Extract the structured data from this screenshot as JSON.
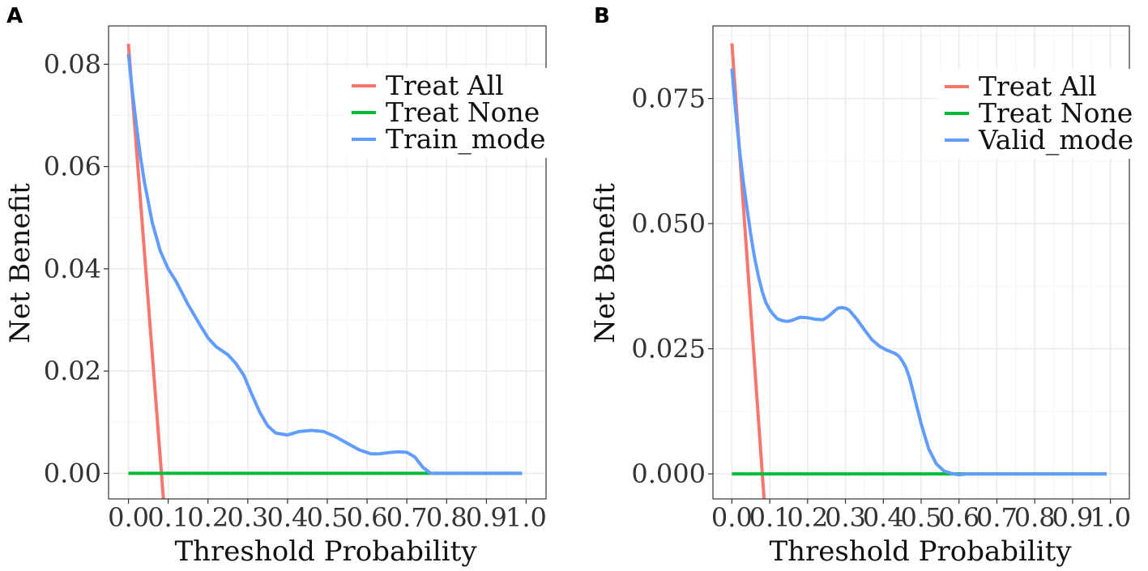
{
  "colors": {
    "treat_all": "#F8766D",
    "treat_none": "#00BA38",
    "model": "#619CFF",
    "grid_major": "#EBEBEB",
    "grid_minor": "#F5F5F5",
    "panel_border": "#333333"
  },
  "chart_data": [
    {
      "type": "line",
      "panel": "A",
      "title": "",
      "xlabel": "Threshold Probability",
      "ylabel": "Net Benefit",
      "xlim": [
        -0.05,
        1.05
      ],
      "ylim": [
        -0.005,
        0.0875
      ],
      "x_ticks": [
        0.0,
        0.1,
        0.2,
        0.3,
        0.4,
        0.5,
        0.6,
        0.7,
        0.8,
        0.9,
        1.0
      ],
      "x_tick_labels": [
        "0.0",
        "0.1",
        "0.2",
        "0.3",
        "0.4",
        "0.5",
        "0.6",
        "0.7",
        "0.8",
        "0.9",
        "1.0"
      ],
      "y_ticks": [
        0.0,
        0.02,
        0.04,
        0.06,
        0.08
      ],
      "y_tick_labels": [
        "0.00",
        "0.02",
        "0.04",
        "0.06",
        "0.08"
      ],
      "legend_position": "top-right",
      "series": [
        {
          "name": "Treat All",
          "color_key": "treat_all",
          "x": [
            0.0,
            0.088
          ],
          "y": [
            0.084,
            -0.005
          ]
        },
        {
          "name": "Treat None",
          "color_key": "treat_none",
          "x": [
            0.0,
            0.99
          ],
          "y": [
            0.0,
            0.0
          ]
        },
        {
          "name": "Train_mode",
          "color_key": "model",
          "x": [
            0.0,
            0.01,
            0.02,
            0.03,
            0.04,
            0.05,
            0.06,
            0.08,
            0.1,
            0.12,
            0.15,
            0.18,
            0.2,
            0.22,
            0.25,
            0.27,
            0.29,
            0.31,
            0.33,
            0.35,
            0.37,
            0.4,
            0.43,
            0.46,
            0.49,
            0.52,
            0.55,
            0.58,
            0.61,
            0.63,
            0.66,
            0.68,
            0.7,
            0.72,
            0.74,
            0.76,
            0.8,
            0.85,
            0.9,
            0.95,
            0.99
          ],
          "y": [
            0.082,
            0.0745,
            0.068,
            0.062,
            0.057,
            0.053,
            0.049,
            0.0435,
            0.04,
            0.0375,
            0.033,
            0.029,
            0.0265,
            0.0248,
            0.0232,
            0.0215,
            0.0192,
            0.0155,
            0.012,
            0.0093,
            0.0079,
            0.0075,
            0.0082,
            0.0084,
            0.0082,
            0.0072,
            0.0059,
            0.0046,
            0.0038,
            0.0038,
            0.0041,
            0.0042,
            0.0041,
            0.0032,
            0.0012,
            0.0,
            0.0,
            0.0,
            0.0,
            0.0,
            0.0
          ]
        }
      ]
    },
    {
      "type": "line",
      "panel": "B",
      "title": "",
      "xlabel": "Threshold Probability",
      "ylabel": "Net Benefit",
      "xlim": [
        -0.05,
        1.05
      ],
      "ylim": [
        -0.005,
        0.0895
      ],
      "x_ticks": [
        0.0,
        0.1,
        0.2,
        0.3,
        0.4,
        0.5,
        0.6,
        0.7,
        0.8,
        0.9,
        1.0
      ],
      "x_tick_labels": [
        "0.0",
        "0.1",
        "0.2",
        "0.3",
        "0.4",
        "0.5",
        "0.6",
        "0.7",
        "0.8",
        "0.9",
        "1.0"
      ],
      "y_ticks": [
        0.0,
        0.025,
        0.05,
        0.075
      ],
      "y_tick_labels": [
        "0.000",
        "0.025",
        "0.050",
        "0.075"
      ],
      "legend_position": "top-right",
      "series": [
        {
          "name": "Treat All",
          "color_key": "treat_all",
          "x": [
            0.0,
            0.085
          ],
          "y": [
            0.086,
            -0.005
          ]
        },
        {
          "name": "Treat None",
          "color_key": "treat_none",
          "x": [
            0.0,
            0.99
          ],
          "y": [
            0.0,
            0.0
          ]
        },
        {
          "name": "Valid_mode",
          "color_key": "model",
          "x": [
            0.0,
            0.01,
            0.02,
            0.03,
            0.04,
            0.05,
            0.06,
            0.07,
            0.08,
            0.09,
            0.1,
            0.11,
            0.12,
            0.13,
            0.14,
            0.15,
            0.16,
            0.17,
            0.18,
            0.2,
            0.22,
            0.24,
            0.25,
            0.26,
            0.27,
            0.28,
            0.29,
            0.3,
            0.31,
            0.33,
            0.35,
            0.37,
            0.39,
            0.41,
            0.42,
            0.43,
            0.44,
            0.45,
            0.46,
            0.47,
            0.48,
            0.5,
            0.52,
            0.54,
            0.56,
            0.58,
            0.6,
            0.62,
            0.65,
            0.7,
            0.8,
            0.9,
            0.99
          ],
          "y": [
            0.081,
            0.0725,
            0.0648,
            0.0585,
            0.053,
            0.0478,
            0.0432,
            0.0395,
            0.0365,
            0.0342,
            0.0328,
            0.0318,
            0.031,
            0.0307,
            0.0305,
            0.0305,
            0.0307,
            0.031,
            0.0313,
            0.0312,
            0.0309,
            0.0308,
            0.0312,
            0.0318,
            0.0325,
            0.0331,
            0.0332,
            0.0331,
            0.0327,
            0.0309,
            0.0288,
            0.0268,
            0.0255,
            0.0247,
            0.0244,
            0.0241,
            0.0236,
            0.0226,
            0.0212,
            0.019,
            0.016,
            0.01,
            0.005,
            0.002,
            0.0006,
            0.0001,
            -0.0002,
            0.0,
            0.0,
            0.0,
            0.0,
            0.0,
            0.0
          ]
        }
      ]
    }
  ]
}
